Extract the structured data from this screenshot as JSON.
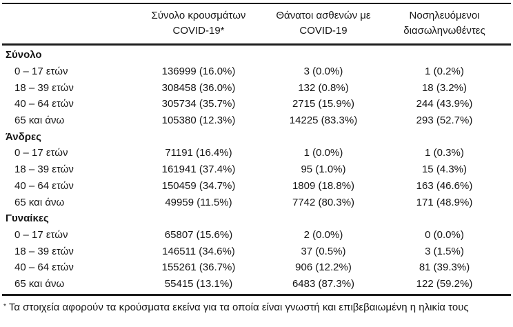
{
  "colors": {
    "text": "#161616",
    "rule": "#1c1c1c",
    "background": "#ffffff"
  },
  "table": {
    "columns": [
      {
        "line1": "Σύνολο κρουσμάτων",
        "line2": "COVID-19*"
      },
      {
        "line1": "Θάνατοι ασθενών με",
        "line2": "COVID-19"
      },
      {
        "line1": "Νοσηλευόμενοι",
        "line2": "διασωληνωθέντες"
      }
    ],
    "sections": [
      {
        "label": "Σύνολο",
        "rows": [
          {
            "label": "0 – 17 ετών",
            "cases": "136999 (16.0%)",
            "deaths": "3 (0.0%)",
            "intubated": "1 (0.2%)"
          },
          {
            "label": "18 – 39 ετών",
            "cases": "308458 (36.0%)",
            "deaths": "132 (0.8%)",
            "intubated": "18 (3.2%)"
          },
          {
            "label": "40 – 64 ετών",
            "cases": "305734 (35.7%)",
            "deaths": "2715 (15.9%)",
            "intubated": "244 (43.9%)"
          },
          {
            "label": "65 και άνω",
            "cases": "105380 (12.3%)",
            "deaths": "14225 (83.3%)",
            "intubated": "293 (52.7%)"
          }
        ]
      },
      {
        "label": "Άνδρες",
        "rows": [
          {
            "label": "0 – 17 ετών",
            "cases": "71191 (16.4%)",
            "deaths": "1 (0.0%)",
            "intubated": "1 (0.3%)"
          },
          {
            "label": "18 – 39 ετών",
            "cases": "161941 (37.4%)",
            "deaths": "95 (1.0%)",
            "intubated": "15 (4.3%)"
          },
          {
            "label": "40 – 64 ετών",
            "cases": "150459 (34.7%)",
            "deaths": "1809 (18.8%)",
            "intubated": "163 (46.6%)"
          },
          {
            "label": "65 και άνω",
            "cases": "49959 (11.5%)",
            "deaths": "7742 (80.3%)",
            "intubated": "171 (48.9%)"
          }
        ]
      },
      {
        "label": "Γυναίκες",
        "rows": [
          {
            "label": "0 – 17 ετών",
            "cases": "65807 (15.6%)",
            "deaths": "2 (0.0%)",
            "intubated": "0 (0.0%)"
          },
          {
            "label": "18 – 39 ετών",
            "cases": "146511 (34.6%)",
            "deaths": "37 (0.5%)",
            "intubated": "3 (1.5%)"
          },
          {
            "label": "40 – 64 ετών",
            "cases": "155261 (36.7%)",
            "deaths": "906 (12.2%)",
            "intubated": "81 (39.3%)"
          },
          {
            "label": "65 και άνω",
            "cases": "55415 (13.1%)",
            "deaths": "6483 (87.3%)",
            "intubated": "122 (59.2%)"
          }
        ]
      }
    ],
    "footnote": {
      "marker": "*",
      "text": "Τα στοιχεία αφορούν τα κρούσματα εκείνα για τα οποία είναι γνωστή και επιβεβαιωμένη η ηλικία τους"
    }
  }
}
